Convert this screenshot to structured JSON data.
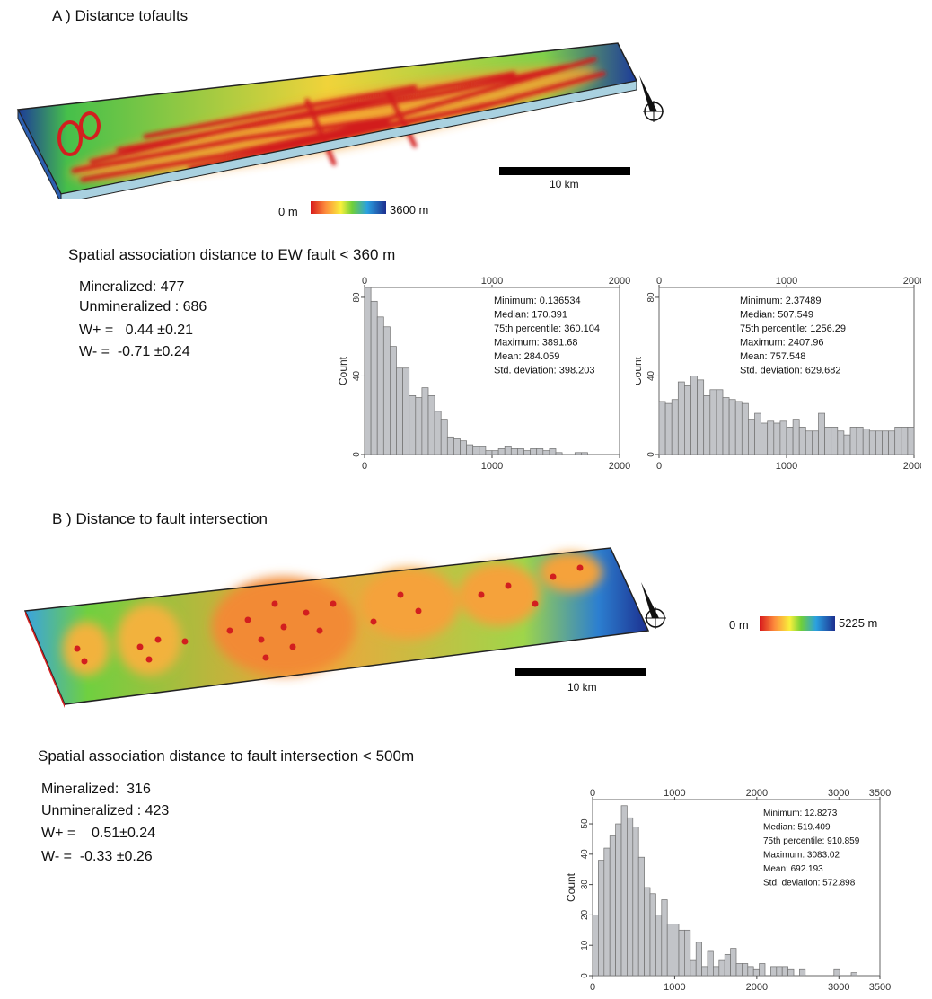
{
  "panel_a": {
    "title": "A ) Distance tofaults",
    "legend": {
      "min": "0 m",
      "max": "3600 m"
    },
    "scale_bar": "10 km",
    "association_title": "Spatial association  distance to EW fault < 360 m",
    "stats": [
      "Mineralized: 477",
      "Unmineralized : 686",
      "W+ =   0.44 ±0.21",
      "W- =  -0.71 ±0.24"
    ]
  },
  "panel_b": {
    "title": "B ) Distance to fault intersection",
    "legend": {
      "min": "0 m",
      "max": "5225 m"
    },
    "scale_bar": "10 km",
    "association_title": "Spatial association  distance to fault intersection < 500m",
    "stats": [
      "Mineralized:  316",
      "Unmineralized : 423",
      "W+ =    0.51±0.24",
      "W- =  -0.33 ±0.26"
    ]
  },
  "chart_data": [
    {
      "type": "bar",
      "ylabel": "Count",
      "xlim": [
        0,
        2000
      ],
      "ylim": [
        0,
        85
      ],
      "xticks": [
        0,
        1000,
        2000
      ],
      "yticks": [
        0,
        40,
        80
      ],
      "bin_width": 50,
      "values": [
        85,
        78,
        70,
        65,
        55,
        44,
        44,
        30,
        29,
        34,
        30,
        22,
        18,
        9,
        8,
        7,
        5,
        4,
        4,
        2,
        2,
        3,
        4,
        3,
        3,
        2,
        3,
        3,
        2,
        3,
        1,
        0,
        0,
        1,
        1,
        0,
        0,
        0,
        0,
        0,
        0,
        0,
        0,
        0,
        3,
        2,
        0,
        0,
        0,
        0
      ],
      "stats": [
        "Minimum: 0.136534",
        "Median: 170.391",
        "75th percentile: 360.104",
        "Maximum: 3891.68",
        "Mean: 284.059",
        "Std. deviation: 398.203"
      ]
    },
    {
      "type": "bar",
      "ylabel": "Count",
      "xlim": [
        0,
        2000
      ],
      "ylim": [
        0,
        85
      ],
      "xticks": [
        0,
        1000,
        2000
      ],
      "yticks": [
        0,
        40,
        80
      ],
      "bin_width": 50,
      "values": [
        27,
        26,
        28,
        37,
        35,
        40,
        38,
        30,
        33,
        33,
        29,
        28,
        27,
        26,
        18,
        21,
        16,
        17,
        16,
        17,
        14,
        18,
        14,
        12,
        12,
        21,
        14,
        14,
        12,
        10,
        14,
        14,
        13,
        12,
        12,
        12,
        12,
        14,
        14,
        14,
        19,
        20,
        14,
        14,
        16,
        12,
        11,
        12,
        14,
        12
      ],
      "stats": [
        "Minimum: 2.37489",
        "Median: 507.549",
        "75th percentile: 1256.29",
        "Maximum: 2407.96",
        "Mean: 757.548",
        "Std. deviation: 629.682"
      ]
    },
    {
      "type": "bar",
      "ylabel": "Count",
      "xlim": [
        0,
        3500
      ],
      "ylim": [
        0,
        58
      ],
      "xticks": [
        0,
        1000,
        2000,
        3000,
        3500
      ],
      "top_xticks": [
        0,
        1000,
        2000,
        3000,
        3500
      ],
      "yticks": [
        0,
        10,
        20,
        30,
        40,
        50
      ],
      "bin_width": 70,
      "values": [
        20,
        38,
        42,
        46,
        50,
        56,
        52,
        49,
        39,
        29,
        27,
        20,
        25,
        17,
        17,
        15,
        15,
        5,
        11,
        3,
        8,
        3,
        5,
        7,
        9,
        4,
        4,
        3,
        2,
        4,
        0,
        3,
        3,
        3,
        2,
        0,
        2,
        0,
        0,
        0,
        0,
        0,
        2,
        0,
        0,
        1,
        0,
        0,
        0,
        0
      ],
      "stats": [
        "Minimum: 12.8273",
        "Median: 519.409",
        "75th percentile: 910.859",
        "Maximum: 3083.02",
        "Mean: 692.193",
        "Std. deviation: 572.898"
      ]
    }
  ]
}
